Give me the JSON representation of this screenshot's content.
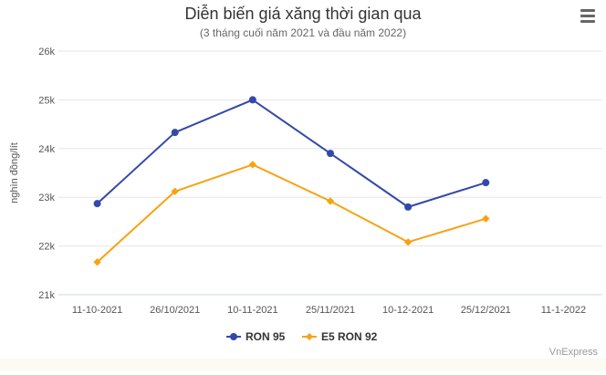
{
  "title": "Diễn biến giá xăng thời gian qua",
  "subtitle": "(3 tháng cuối năm 2021 và đầu năm 2022)",
  "credit": "VnExpress",
  "menu_icon": "hamburger-menu-icon",
  "colors": {
    "ron95": "#3349a8",
    "e5ron92": "#f7a214",
    "grid": "#e6e6e6",
    "text": "#333333",
    "axis_text": "#555555"
  },
  "chart_data": {
    "type": "line",
    "title": "Diễn biến giá xăng thời gian qua",
    "subtitle": "(3 tháng cuối năm 2021 và đầu năm 2022)",
    "xlabel": "",
    "ylabel": "nghìn đồng/lít",
    "categories": [
      "11-10-2021",
      "26/10/2021",
      "10-11-2021",
      "25/11/2021",
      "10-12-2021",
      "25/12/2021",
      "11-1-2022"
    ],
    "ylim": [
      21,
      26
    ],
    "yticks": [
      "21k",
      "22k",
      "23k",
      "24k",
      "25k",
      "26k"
    ],
    "grid": true,
    "legend_position": "bottom",
    "series": [
      {
        "name": "RON 95",
        "marker": "circle",
        "values": [
          22.87,
          24.33,
          25.0,
          23.9,
          22.8,
          23.3,
          null
        ]
      },
      {
        "name": "E5 RON 92",
        "marker": "diamond",
        "values": [
          21.67,
          23.12,
          23.67,
          22.92,
          22.08,
          22.56,
          null
        ]
      }
    ]
  }
}
